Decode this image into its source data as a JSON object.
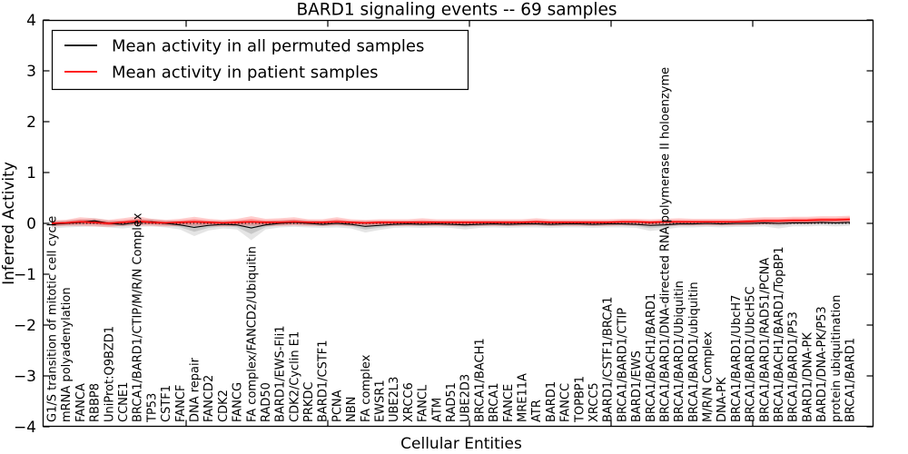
{
  "figure": {
    "title": "BARD1 signaling events -- 69 samples",
    "xlabel": "Cellular Entities",
    "ylabel": "Inferred Activity",
    "background": "#ffffff",
    "frame_color": "#000000"
  },
  "legend": {
    "position": "upper left",
    "entries": [
      {
        "label": "Mean activity in all permuted samples",
        "color": "#000000"
      },
      {
        "label": "Mean activity in patient samples",
        "color": "#ff0000"
      }
    ]
  },
  "axes": {
    "yticks": [
      "4",
      "3",
      "2",
      "1",
      "0",
      "−1",
      "−2",
      "−3",
      "−4"
    ],
    "ytick_values": [
      4,
      3,
      2,
      1,
      0,
      -1,
      -2,
      -3,
      -4
    ],
    "ylim": [
      -4,
      4
    ],
    "grid": false
  },
  "chart_data": {
    "type": "line",
    "title": "BARD1 signaling events -- 69 samples",
    "xlabel": "Cellular Entities",
    "ylabel": "Inferred Activity",
    "ylim": [
      -4,
      4
    ],
    "zero_line_dotted": true,
    "legend_position": "upper left",
    "categories": [
      "G1/S transition of mitotic cell cycle",
      "mRNA polyadenylation",
      "FANCA",
      "RBBP8",
      "UniProt:Q9BZD1",
      "CCNE1",
      "BRCA1/BARD1/CTIP/M/R/N Complex",
      "TP53",
      "CSTF1",
      "FANCF",
      "DNA repair",
      "FANCD2",
      "CDK2",
      "FANCG",
      "FA complex/FANCD2/Ubiquitin",
      "RAD50",
      "BARD1/EWS-Fli1",
      "CDK2/Cyclin E1",
      "PRKDC",
      "BARD1/CSTF1",
      "PCNA",
      "NBN",
      "FA complex",
      "EWSR1",
      "UBE2L3",
      "XRCC6",
      "FANCL",
      "ATM",
      "RAD51",
      "UBE2D3",
      "BRCA1/BACH1",
      "BRCA1",
      "FANCE",
      "MRE11A",
      "ATR",
      "BARD1",
      "FANCC",
      "TOPBP1",
      "XRCC5",
      "BARD1/CSTF1/BRCA1",
      "BRCA1/BARD1/CTIP",
      "BARD1/EWS",
      "BRCA1/BACH1/BARD1",
      "BRCA1/BARD1/DNA-directed RNA polymerase II holoenzyme",
      "BRCA1/BARD1/Ubiquitin",
      "BRCA1/BARD1/ubiquitin",
      "M/R/N Complex",
      "DNA-PK",
      "BRCA1/BARD1/UbcH7",
      "BRCA1/BARD1/UbcH5C",
      "BRCA1/BARD1/RAD51/PCNA",
      "BRCA1/BACH1/BARD1/TopBP1",
      "BRCA1/BARD1/P53",
      "BARD1/DNA-PK",
      "BARD1/DNA-PK/P53",
      "protein ubiquitination",
      "BRCA1/BARD1"
    ],
    "series": [
      {
        "name": "Mean activity in all permuted samples",
        "color": "#000000",
        "band_color": "#000000",
        "values": [
          -0.02,
          0.0,
          0.02,
          0.05,
          0.0,
          -0.02,
          0.02,
          0.03,
          0.0,
          -0.03,
          -0.08,
          -0.04,
          -0.02,
          -0.03,
          -0.09,
          -0.03,
          0.0,
          0.02,
          0.0,
          -0.02,
          0.0,
          -0.02,
          -0.06,
          -0.04,
          -0.02,
          -0.01,
          -0.02,
          -0.01,
          -0.02,
          -0.03,
          -0.02,
          -0.01,
          -0.02,
          -0.01,
          -0.01,
          -0.02,
          -0.01,
          -0.01,
          -0.02,
          -0.01,
          -0.01,
          -0.02,
          -0.04,
          -0.03,
          -0.01,
          -0.01,
          0.0,
          -0.01,
          0.0,
          0.0,
          0.01,
          0.0,
          0.01,
          0.01,
          0.02,
          0.01,
          0.02
        ],
        "band_low": [
          -0.1,
          -0.08,
          -0.07,
          -0.06,
          -0.08,
          -0.1,
          -0.07,
          -0.06,
          -0.08,
          -0.12,
          -0.25,
          -0.14,
          -0.1,
          -0.12,
          -0.33,
          -0.12,
          -0.08,
          -0.07,
          -0.08,
          -0.09,
          -0.08,
          -0.1,
          -0.18,
          -0.13,
          -0.09,
          -0.08,
          -0.09,
          -0.08,
          -0.09,
          -0.12,
          -0.09,
          -0.08,
          -0.09,
          -0.08,
          -0.08,
          -0.09,
          -0.08,
          -0.08,
          -0.09,
          -0.08,
          -0.08,
          -0.09,
          -0.15,
          -0.12,
          -0.08,
          -0.08,
          -0.07,
          -0.08,
          -0.07,
          -0.07,
          -0.06,
          -0.1,
          -0.06,
          -0.06,
          -0.05,
          -0.06,
          -0.05
        ],
        "band_high": [
          0.05,
          0.06,
          0.08,
          0.1,
          0.06,
          0.05,
          0.08,
          0.09,
          0.06,
          0.05,
          0.05,
          0.05,
          0.05,
          0.05,
          0.05,
          0.05,
          0.06,
          0.07,
          0.06,
          0.05,
          0.06,
          0.05,
          0.05,
          0.05,
          0.05,
          0.05,
          0.05,
          0.05,
          0.05,
          0.05,
          0.05,
          0.05,
          0.05,
          0.05,
          0.05,
          0.05,
          0.05,
          0.05,
          0.05,
          0.05,
          0.05,
          0.05,
          0.05,
          0.05,
          0.05,
          0.05,
          0.05,
          0.05,
          0.05,
          0.05,
          0.06,
          0.06,
          0.06,
          0.06,
          0.07,
          0.07,
          0.07
        ]
      },
      {
        "name": "Mean activity in patient samples",
        "color": "#ff0000",
        "band_color": "#ff0000",
        "values": [
          0.0,
          0.01,
          0.03,
          0.02,
          0.0,
          0.02,
          0.04,
          0.02,
          0.01,
          0.02,
          0.03,
          0.02,
          0.01,
          0.02,
          0.03,
          0.02,
          0.02,
          0.03,
          0.02,
          0.02,
          0.03,
          0.02,
          0.01,
          0.02,
          0.02,
          0.02,
          0.02,
          0.02,
          0.02,
          0.02,
          0.02,
          0.02,
          0.02,
          0.02,
          0.03,
          0.02,
          0.02,
          0.02,
          0.02,
          0.02,
          0.03,
          0.03,
          0.02,
          0.03,
          0.03,
          0.03,
          0.03,
          0.03,
          0.03,
          0.04,
          0.05,
          0.05,
          0.06,
          0.06,
          0.07,
          0.07,
          0.08
        ],
        "band_low": [
          -0.06,
          -0.05,
          -0.05,
          -0.06,
          -0.07,
          -0.05,
          -0.04,
          -0.05,
          -0.06,
          -0.05,
          -0.05,
          -0.05,
          -0.06,
          -0.05,
          -0.05,
          -0.05,
          -0.05,
          -0.04,
          -0.05,
          -0.05,
          -0.04,
          -0.05,
          -0.05,
          -0.05,
          -0.05,
          -0.05,
          -0.04,
          -0.05,
          -0.05,
          -0.05,
          -0.05,
          -0.05,
          -0.05,
          -0.05,
          -0.04,
          -0.05,
          -0.05,
          -0.05,
          -0.05,
          -0.05,
          -0.04,
          -0.04,
          -0.05,
          -0.04,
          -0.04,
          -0.04,
          -0.04,
          -0.04,
          -0.04,
          -0.03,
          -0.02,
          -0.02,
          -0.01,
          -0.01,
          0.0,
          0.0,
          0.01
        ],
        "band_high": [
          0.06,
          0.07,
          0.12,
          0.1,
          0.07,
          0.1,
          0.14,
          0.09,
          0.07,
          0.09,
          0.13,
          0.09,
          0.07,
          0.09,
          0.14,
          0.09,
          0.1,
          0.12,
          0.08,
          0.08,
          0.12,
          0.08,
          0.07,
          0.08,
          0.08,
          0.08,
          0.1,
          0.08,
          0.08,
          0.08,
          0.08,
          0.08,
          0.08,
          0.08,
          0.1,
          0.08,
          0.08,
          0.08,
          0.08,
          0.08,
          0.09,
          0.09,
          0.08,
          0.09,
          0.1,
          0.09,
          0.09,
          0.09,
          0.09,
          0.11,
          0.12,
          0.12,
          0.13,
          0.13,
          0.14,
          0.14,
          0.15
        ]
      }
    ]
  }
}
